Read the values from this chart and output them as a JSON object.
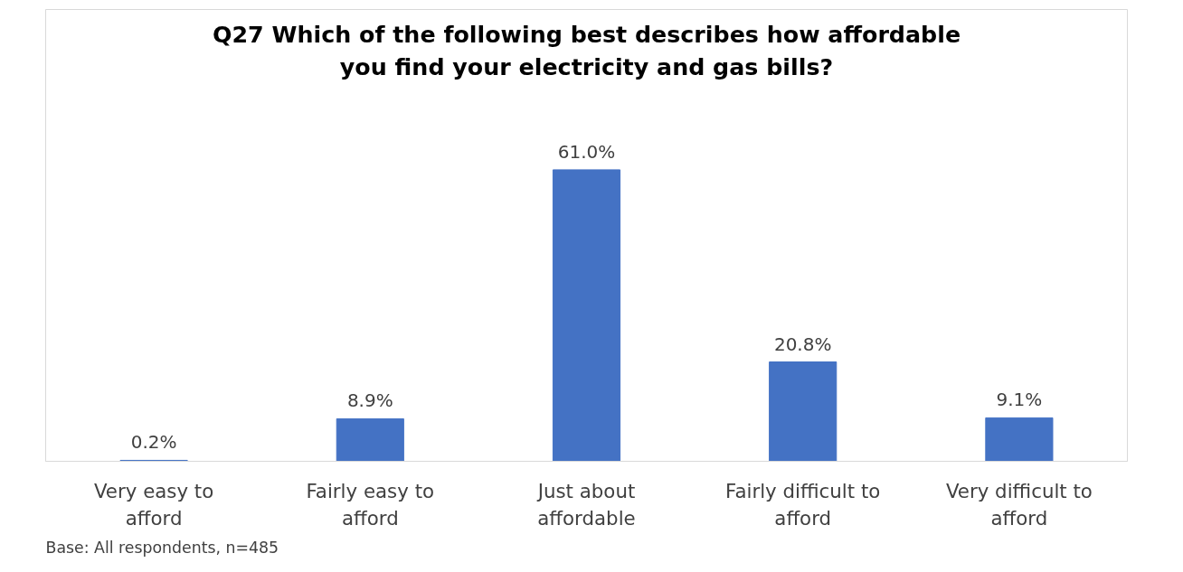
{
  "chart_data": {
    "type": "bar",
    "title": "Q27 Which of the following best describes how affordable you find your electricity and gas bills?",
    "categories": [
      "Very easy to afford",
      "Fairly easy to afford",
      "Just about affordable",
      "Fairly difficult to afford",
      "Very difficult to afford"
    ],
    "values": [
      0.2,
      8.9,
      61.0,
      20.8,
      9.1
    ],
    "value_labels": [
      "0.2%",
      "8.9%",
      "61.0%",
      "20.8%",
      "9.1%"
    ],
    "color": "#4472c4",
    "grid": false,
    "annotations": [
      "Base: All respondents, n=485"
    ]
  }
}
